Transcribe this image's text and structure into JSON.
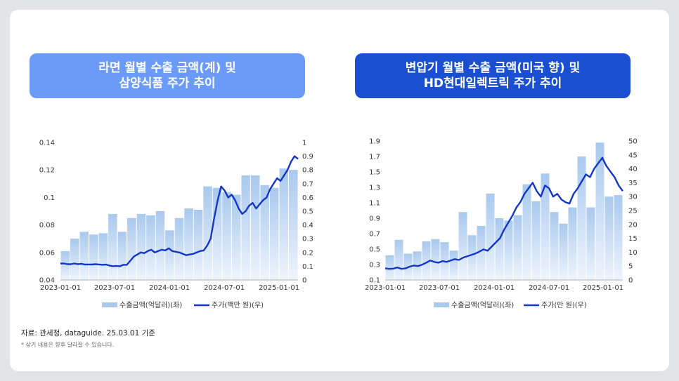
{
  "charts": [
    {
      "title_lines": [
        "라면 월별 수출 금액(계) 및",
        "삼양식품 주가 추이"
      ],
      "title_color": "#6b9bf9",
      "legend": {
        "bar": "수출금액(억달러)(좌)",
        "line": "주가(백만 원)(우)"
      },
      "chart_data": {
        "type": "bar+line",
        "x_ticks": [
          "2023-01-01",
          "2023-07-01",
          "2024-01-01",
          "2024-07-01",
          "2025-01-01"
        ],
        "left_axis": {
          "min": 0.04,
          "max": 0.14,
          "ticks": [
            "0.04",
            "0.06",
            "0.08",
            "0.1",
            "0.12",
            "0.14"
          ]
        },
        "right_axis": {
          "min": 0,
          "max": 1,
          "ticks": [
            "0",
            "0.1",
            "0.2",
            "0.3",
            "0.4",
            "0.5",
            "0.6",
            "0.7",
            "0.8",
            "0.9",
            "1"
          ]
        },
        "bar_series": {
          "name": "수출금액(억달러)(좌)",
          "values": [
            0.061,
            0.07,
            0.075,
            0.073,
            0.074,
            0.088,
            0.075,
            0.085,
            0.088,
            0.087,
            0.09,
            0.076,
            0.085,
            0.092,
            0.091,
            0.108,
            0.107,
            0.104,
            0.102,
            0.116,
            0.116,
            0.109,
            0.107,
            0.121,
            0.12
          ]
        },
        "line_series": {
          "name": "주가(백만 원)(우)",
          "values": [
            0.12,
            0.12,
            0.115,
            0.115,
            0.12,
            0.115,
            0.118,
            0.112,
            0.113,
            0.112,
            0.115,
            0.113,
            0.11,
            0.112,
            0.105,
            0.1,
            0.102,
            0.1,
            0.11,
            0.11,
            0.14,
            0.17,
            0.185,
            0.2,
            0.195,
            0.21,
            0.22,
            0.2,
            0.21,
            0.22,
            0.215,
            0.23,
            0.21,
            0.205,
            0.2,
            0.19,
            0.18,
            0.185,
            0.19,
            0.2,
            0.21,
            0.215,
            0.25,
            0.3,
            0.45,
            0.58,
            0.68,
            0.65,
            0.6,
            0.62,
            0.58,
            0.52,
            0.48,
            0.5,
            0.54,
            0.56,
            0.52,
            0.55,
            0.58,
            0.6,
            0.66,
            0.7,
            0.74,
            0.72,
            0.76,
            0.8,
            0.86,
            0.9,
            0.88
          ]
        }
      }
    },
    {
      "title_lines": [
        "변압기 월별 수출 금액(미국 향) 및",
        "HD현대일렉트릭 주가 추이"
      ],
      "title_color": "#1a4fd2",
      "legend": {
        "bar": "수출금액(억달러)(좌)",
        "line": "주가(만 원)(우)"
      },
      "chart_data": {
        "type": "bar+line",
        "x_ticks": [
          "2023-01-01",
          "2023-07-01",
          "2024-01-01",
          "2024-07-01",
          "2025-01-01"
        ],
        "left_axis": {
          "min": 0.1,
          "max": 1.9,
          "ticks": [
            "0.1",
            "0.3",
            "0.5",
            "0.7",
            "0.9",
            "1.1",
            "1.3",
            "1.5",
            "1.7",
            "1.9"
          ]
        },
        "right_axis": {
          "min": 0,
          "max": 50,
          "ticks": [
            "0",
            "5",
            "10",
            "15",
            "20",
            "25",
            "30",
            "35",
            "40",
            "45",
            "50"
          ]
        },
        "bar_series": {
          "name": "수출금액(억달러)(좌)",
          "values": [
            0.42,
            0.62,
            0.44,
            0.47,
            0.6,
            0.63,
            0.59,
            0.48,
            0.98,
            0.68,
            0.8,
            1.22,
            0.9,
            0.87,
            0.94,
            1.34,
            1.12,
            1.48,
            0.98,
            0.83,
            1.04,
            1.7,
            1.04,
            1.88,
            1.18,
            1.2
          ]
        },
        "line_series": {
          "name": "주가(만 원)(우)",
          "values": [
            4.2,
            4.0,
            4.1,
            4.5,
            4.0,
            4.2,
            4.8,
            5.2,
            5.0,
            5.5,
            6.2,
            7.0,
            6.5,
            6.2,
            6.8,
            6.5,
            7.0,
            7.5,
            7.2,
            8.0,
            8.5,
            9.0,
            9.5,
            10.2,
            11.0,
            10.5,
            12.0,
            13.5,
            15.0,
            18.0,
            20.5,
            23.0,
            26.0,
            28.0,
            31.0,
            33.0,
            35.0,
            32.0,
            30.0,
            34.0,
            33.0,
            30.0,
            31.0,
            29.0,
            28.0,
            27.5,
            31.0,
            33.0,
            35.5,
            38.0,
            37.0,
            40.0,
            42.0,
            44.0,
            41.0,
            39.0,
            37.0,
            34.0,
            32.0
          ]
        }
      }
    }
  ],
  "footer": {
    "source": "자료: 관세청, dataguide. 25.03.01 기준",
    "note": "* 상기 내용은 향후 달라질 수 있습니다."
  }
}
